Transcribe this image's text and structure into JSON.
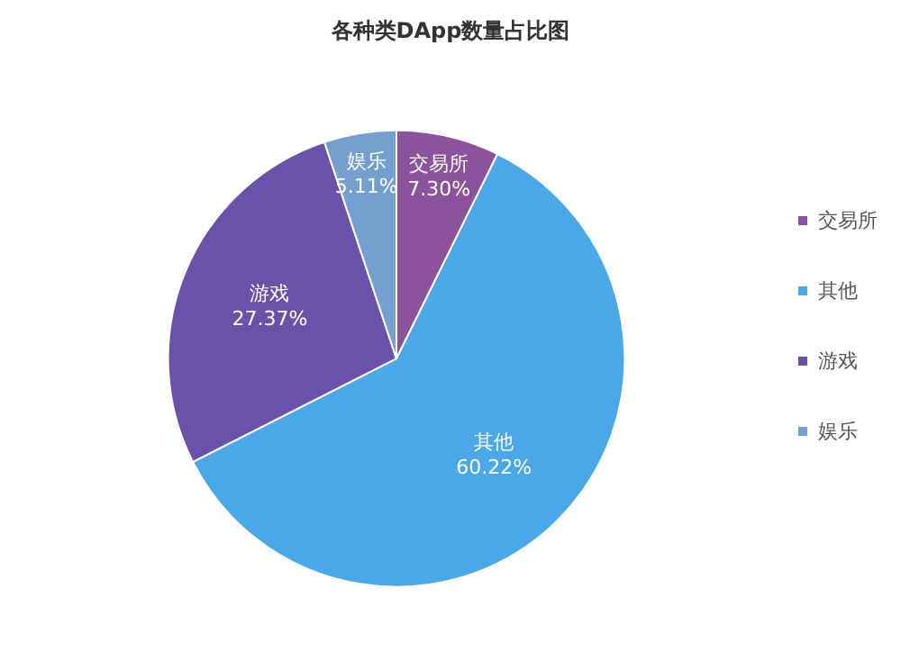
{
  "chart_data": {
    "type": "pie",
    "title": "各种类DApp数量占比图",
    "categories": [
      "交易所",
      "其他",
      "游戏",
      "娱乐"
    ],
    "values": [
      7.3,
      60.22,
      27.37,
      5.11
    ],
    "colors": [
      "#8a539b",
      "#4aa8e6",
      "#6a52a8",
      "#74a0d0"
    ],
    "value_labels": [
      "7.30%",
      "60.22%",
      "27.37%",
      "5.11%"
    ],
    "legend": "right"
  }
}
